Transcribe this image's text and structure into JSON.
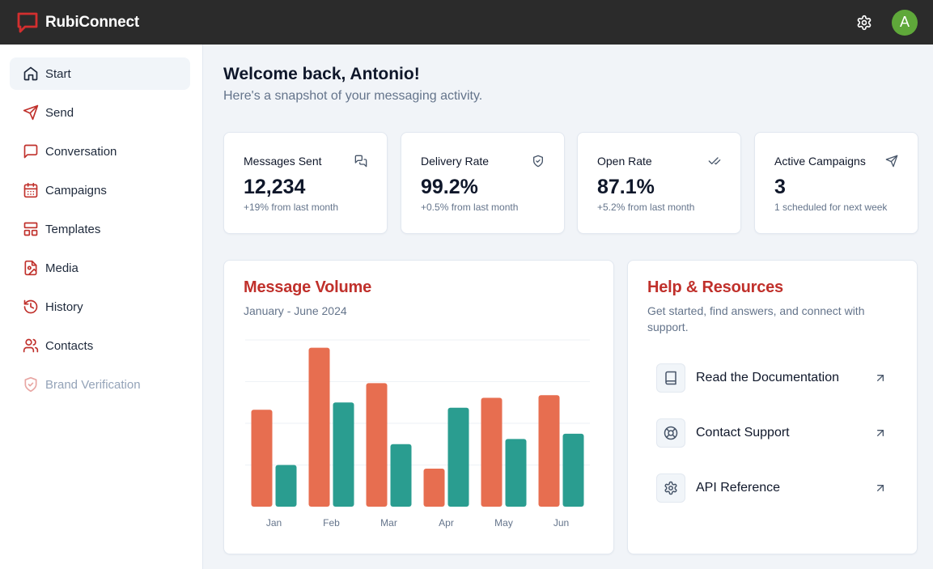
{
  "app": {
    "name": "RubiConnect",
    "avatar_initial": "A",
    "brand_color": "#d32f2f",
    "avatar_color": "#5fa83a"
  },
  "header": {
    "settings_icon": "gear-icon"
  },
  "sidebar": {
    "items": [
      {
        "label": "Start",
        "icon": "home-icon",
        "active": true
      },
      {
        "label": "Send",
        "icon": "send-icon"
      },
      {
        "label": "Conversation",
        "icon": "message-square-icon"
      },
      {
        "label": "Campaigns",
        "icon": "calendar-icon"
      },
      {
        "label": "Templates",
        "icon": "layout-icon"
      },
      {
        "label": "Media",
        "icon": "file-image-icon"
      },
      {
        "label": "History",
        "icon": "history-icon"
      },
      {
        "label": "Contacts",
        "icon": "users-icon"
      },
      {
        "label": "Brand Verification",
        "icon": "shield-check-icon",
        "disabled": true
      }
    ]
  },
  "main": {
    "welcome": "Welcome back, Antonio!",
    "subtitle": "Here's a snapshot of your messaging activity."
  },
  "stats": [
    {
      "title": "Messages Sent",
      "value": "12,234",
      "delta": "+19% from last month",
      "icon": "messages-icon"
    },
    {
      "title": "Delivery Rate",
      "value": "99.2%",
      "delta": "+0.5% from last month",
      "icon": "shield-icon"
    },
    {
      "title": "Open Rate",
      "value": "87.1%",
      "delta": "+5.2% from last month",
      "icon": "check-check-icon"
    },
    {
      "title": "Active Campaigns",
      "value": "3",
      "delta": "1 scheduled for next week",
      "icon": "send-icon"
    }
  ],
  "volume": {
    "title": "Message Volume",
    "subtitle": "January - June 2024"
  },
  "chart_data": {
    "type": "bar",
    "categories": [
      "Jan",
      "Feb",
      "Mar",
      "Apr",
      "May",
      "Jun"
    ],
    "series": [
      {
        "values": [
          186,
          305,
          237,
          73,
          209,
          214
        ],
        "color": "#e76e50"
      },
      {
        "values": [
          80,
          200,
          120,
          190,
          130,
          140
        ],
        "color": "#2a9d90"
      }
    ],
    "ylim": [
      0,
      320
    ],
    "grid": true,
    "legend": "none"
  },
  "help": {
    "title": "Help & Resources",
    "subtitle_line1": "Get started, find answers, and connect with",
    "subtitle_line2": "support.",
    "items": [
      {
        "label": "Read the Documentation",
        "icon": "book-icon"
      },
      {
        "label": "Contact Support",
        "icon": "life-buoy-icon"
      },
      {
        "label": "API Reference",
        "icon": "gear-icon"
      }
    ]
  }
}
